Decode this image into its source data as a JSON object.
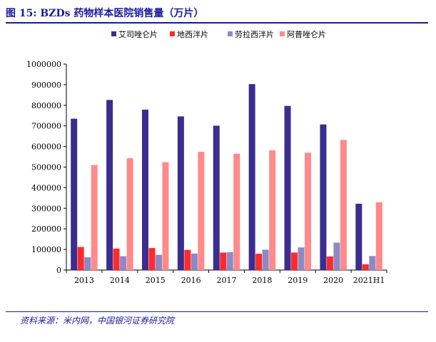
{
  "header": {
    "title": "图 15:  BZDs 药物样本医院销售量（万片）"
  },
  "footer": {
    "source": "资料来源：米内网，中国银河证券研究院"
  },
  "chart_data": {
    "type": "bar",
    "title": "",
    "xlabel": "",
    "ylabel": "",
    "ylim": [
      0,
      1000000
    ],
    "yticks": [
      0,
      100000,
      200000,
      300000,
      400000,
      500000,
      600000,
      700000,
      800000,
      900000,
      1000000
    ],
    "ytick_labels": [
      "0",
      "100000",
      "200000",
      "300000",
      "400000",
      "500000",
      "600000",
      "700000",
      "800000",
      "900000",
      "1000000"
    ],
    "legend_position": "top",
    "grid": false,
    "categories": [
      "2013",
      "2014",
      "2015",
      "2016",
      "2017",
      "2018",
      "2019",
      "2020",
      "2021H1"
    ],
    "series": [
      {
        "name": "艾司唑仑片",
        "color": "#3b2d8f",
        "values": [
          735000,
          826000,
          779000,
          746000,
          701000,
          903000,
          797000,
          707000,
          322000
        ]
      },
      {
        "name": "地西泮片",
        "color": "#ff2b2b",
        "values": [
          112000,
          104000,
          107000,
          98000,
          85000,
          79000,
          85000,
          66000,
          28000
        ]
      },
      {
        "name": "劳拉西泮片",
        "color": "#8d89c7",
        "values": [
          62000,
          67000,
          74000,
          80000,
          87000,
          99000,
          110000,
          133000,
          68000
        ]
      },
      {
        "name": "阿普唑仑片",
        "color": "#ff8a8a",
        "values": [
          510000,
          543000,
          524000,
          574000,
          565000,
          581000,
          570000,
          632000,
          329000
        ]
      }
    ]
  }
}
